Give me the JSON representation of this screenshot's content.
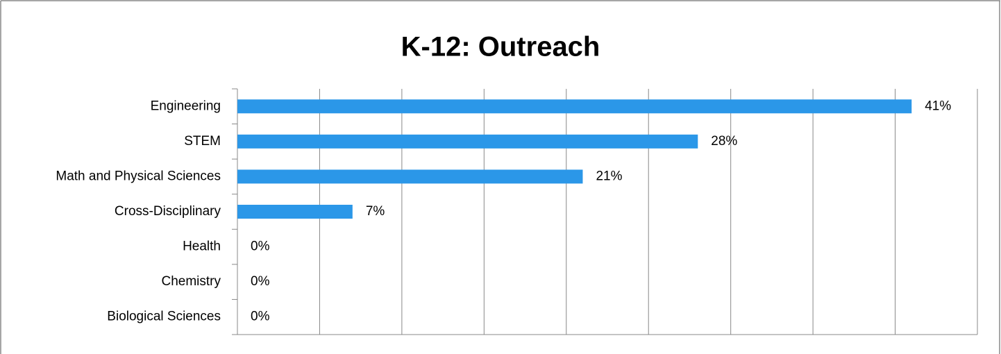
{
  "chart_data": {
    "type": "bar",
    "orientation": "horizontal",
    "title": "K-12: Outreach",
    "categories": [
      "Engineering",
      "STEM",
      "Math and Physical Sciences",
      "Cross-Disciplinary",
      "Health",
      "Chemistry",
      "Biological Sciences"
    ],
    "values": [
      41,
      28,
      21,
      7,
      0,
      0,
      0
    ],
    "value_labels": [
      "41%",
      "28%",
      "21%",
      "7%",
      "0%",
      "0%",
      "0%"
    ],
    "color": "#2b97e8",
    "xlim": [
      0,
      45
    ],
    "xticks": [
      0,
      5,
      10,
      15,
      20,
      25,
      30,
      35,
      40,
      45
    ],
    "grid": true
  }
}
